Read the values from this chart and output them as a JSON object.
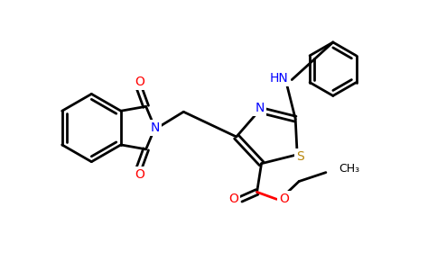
{
  "bg_color": "#ffffff",
  "atom_colors": {
    "C": "#000000",
    "N": "#0000ff",
    "O": "#ff0000",
    "S": "#b8860b",
    "H": "#000000"
  },
  "figsize": [
    4.84,
    3.0
  ],
  "dpi": 100
}
